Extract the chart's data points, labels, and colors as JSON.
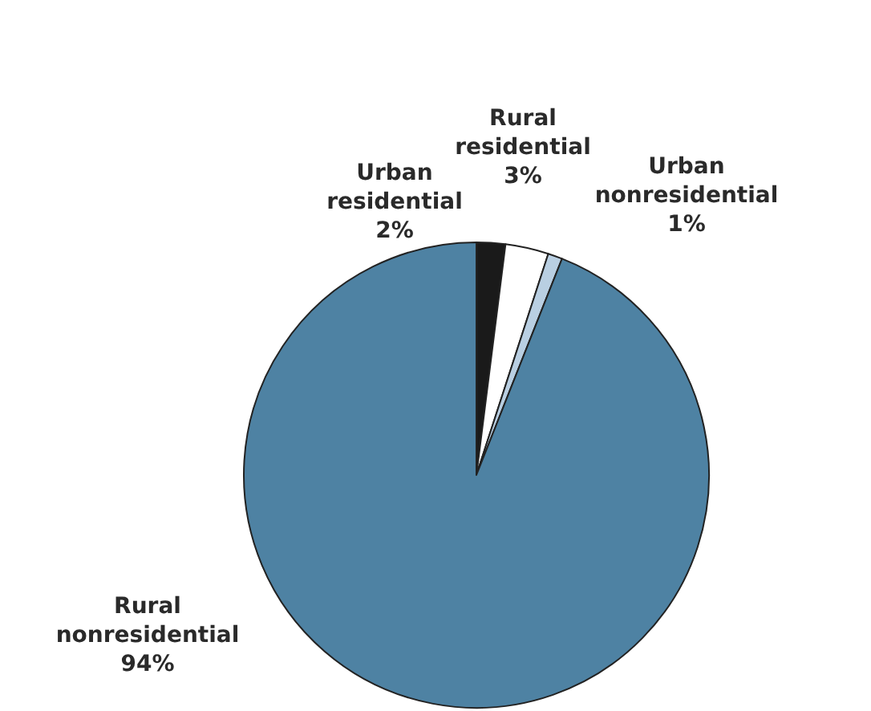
{
  "chart_data": {
    "type": "pie",
    "categories": [
      "Urban residential",
      "Rural residential",
      "Urban nonresidential",
      "Rural nonresidential"
    ],
    "values": [
      2,
      3,
      1,
      94
    ],
    "value_labels": [
      "2%",
      "3%",
      "1%",
      "94%"
    ],
    "colors": [
      "#1a1a1a",
      "#ffffff",
      "#b9cfe2",
      "#4e82a3"
    ],
    "legend": false
  }
}
